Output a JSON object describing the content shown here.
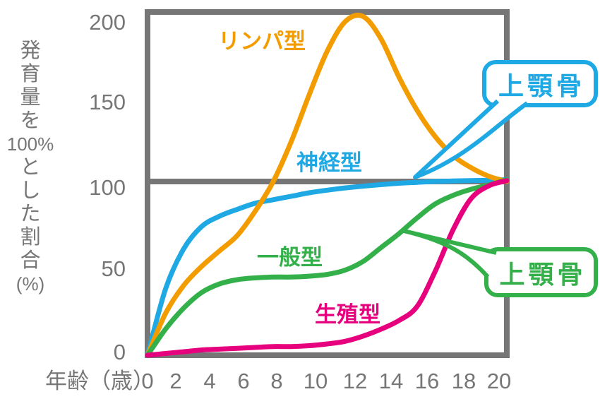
{
  "palette": {
    "gray": "#767676",
    "orange": "#F39C00",
    "blue": "#1FA9E4",
    "green": "#34B04A",
    "magenta": "#E6007E",
    "background": "#FFFFFF"
  },
  "chart_data": {
    "type": "line",
    "title": "",
    "xlabel": "年齢（歳）",
    "ylabel": "発育量を100%とした割合（％）",
    "ylabel_parts": [
      "発",
      "育",
      "量",
      "を",
      "100%",
      "と",
      "し",
      "た",
      "割",
      "合",
      "(%)"
    ],
    "x": [
      0,
      1,
      2,
      3,
      4,
      5,
      6,
      7,
      8,
      9,
      10,
      11,
      12,
      13,
      14,
      15,
      16,
      17,
      18,
      19,
      20
    ],
    "x_ticks": [
      0,
      2,
      4,
      6,
      8,
      10,
      12,
      14,
      16,
      18,
      20
    ],
    "y_ticks": [
      0,
      50,
      100,
      150,
      200
    ],
    "ylim": [
      0,
      210
    ],
    "xlim": [
      0,
      20
    ],
    "grid": false,
    "reference_line_y": 100,
    "series": [
      {
        "name": "神経型",
        "color": "#1FA9E4",
        "values": [
          0,
          38,
          61,
          74,
          80,
          84,
          87.5,
          89.5,
          91.5,
          93.5,
          95,
          96.3,
          97.3,
          98.2,
          99,
          99.5,
          100,
          100.3,
          100.5,
          100.7,
          101
        ]
      },
      {
        "name": "リンパ型",
        "color": "#F39C00",
        "values": [
          0,
          24,
          40,
          51,
          60,
          69,
          83,
          100,
          123,
          150,
          175,
          192,
          195,
          182,
          160,
          141,
          126,
          115,
          108,
          103,
          100
        ]
      },
      {
        "name": "一般型",
        "color": "#34B04A",
        "values": [
          0,
          15,
          27,
          36,
          41,
          43.5,
          44.5,
          45,
          45,
          45.5,
          46.5,
          49,
          54,
          62,
          70,
          79,
          87,
          92,
          95.5,
          98,
          101
        ]
      },
      {
        "name": "生殖型",
        "color": "#E6007E",
        "values": [
          0,
          1,
          2,
          3,
          3.5,
          4,
          4.5,
          5,
          5,
          5.5,
          6.5,
          8,
          11,
          15,
          20,
          28,
          48,
          72,
          90,
          97.5,
          100.5
        ]
      }
    ],
    "annotations": [
      {
        "label": "上顎骨",
        "points_to_series": "神経型"
      },
      {
        "label": "上顎骨",
        "points_to_series": "一般型"
      }
    ]
  }
}
